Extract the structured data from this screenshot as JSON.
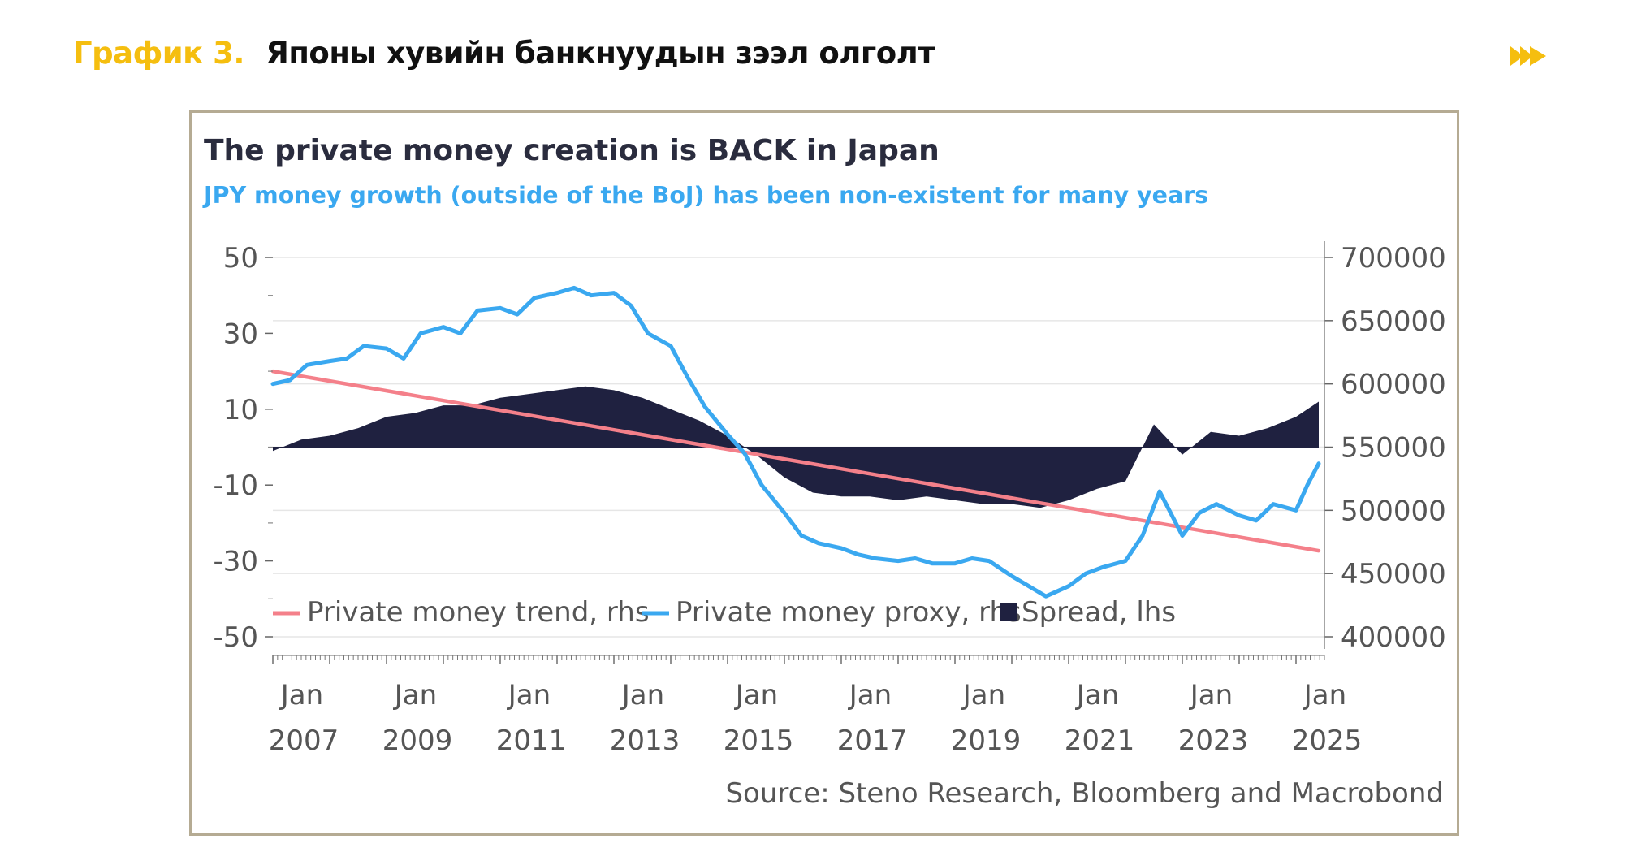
{
  "header": {
    "label": "График 3.",
    "title": "Японы хувийн банкнуудын зээл олголт",
    "arrow_icon": "fast-forward-icon",
    "accent_color": "#F5BE0F"
  },
  "chart_data": {
    "type": "line",
    "title": "The private money creation is BACK in Japan",
    "subtitle": "JPY money growth (outside of the BoJ) has been non-existent for many years",
    "source": "Source: Steno Research, Bloomberg and Macrobond",
    "x_tick_labels": [
      [
        "Jan",
        "2007"
      ],
      [
        "Jan",
        "2009"
      ],
      [
        "Jan",
        "2011"
      ],
      [
        "Jan",
        "2013"
      ],
      [
        "Jan",
        "2015"
      ],
      [
        "Jan",
        "2017"
      ],
      [
        "Jan",
        "2019"
      ],
      [
        "Jan",
        "2021"
      ],
      [
        "Jan",
        "2023"
      ],
      [
        "Jan",
        "2025"
      ]
    ],
    "x_range": [
      2007.0,
      2025.5
    ],
    "y_left": {
      "ticks": [
        "50",
        "30",
        "10",
        "-10",
        "-30",
        "-50"
      ],
      "range": [
        -50,
        50
      ]
    },
    "y_right": {
      "ticks": [
        "700000",
        "650000",
        "600000",
        "550000",
        "500000",
        "450000",
        "400000"
      ],
      "range": [
        400000,
        700000
      ]
    },
    "grid": true,
    "legend_position": "bottom-left",
    "legend": [
      {
        "name": "Private money trend, rhs",
        "kind": "line"
      },
      {
        "name": "Private money proxy, rhs",
        "kind": "line"
      },
      {
        "name": "Spread, lhs",
        "kind": "area"
      }
    ],
    "series": [
      {
        "name": "Private money trend, rhs",
        "axis": "right",
        "color": "#F4808A",
        "x": [
          2007.0,
          2025.4
        ],
        "y": [
          610000,
          468000
        ]
      },
      {
        "name": "Private money proxy, rhs",
        "axis": "right",
        "color": "#3AA8F0",
        "x": [
          2007.0,
          2007.3,
          2007.6,
          2008.0,
          2008.3,
          2008.6,
          2009.0,
          2009.3,
          2009.6,
          2010.0,
          2010.3,
          2010.6,
          2011.0,
          2011.3,
          2011.6,
          2012.0,
          2012.3,
          2012.6,
          2013.0,
          2013.3,
          2013.6,
          2014.0,
          2014.3,
          2014.6,
          2015.0,
          2015.3,
          2015.6,
          2016.0,
          2016.3,
          2016.6,
          2017.0,
          2017.3,
          2017.6,
          2018.0,
          2018.3,
          2018.6,
          2019.0,
          2019.3,
          2019.6,
          2020.0,
          2020.3,
          2020.6,
          2021.0,
          2021.3,
          2021.6,
          2022.0,
          2022.3,
          2022.6,
          2023.0,
          2023.3,
          2023.6,
          2024.0,
          2024.3,
          2024.6,
          2025.0,
          2025.2,
          2025.4
        ],
        "y": [
          600000,
          603000,
          615000,
          618000,
          620000,
          630000,
          628000,
          620000,
          640000,
          645000,
          640000,
          658000,
          660000,
          655000,
          668000,
          672000,
          676000,
          670000,
          672000,
          662000,
          640000,
          630000,
          605000,
          582000,
          560000,
          545000,
          520000,
          498000,
          480000,
          474000,
          470000,
          465000,
          462000,
          460000,
          462000,
          458000,
          458000,
          462000,
          460000,
          448000,
          440000,
          432000,
          440000,
          450000,
          455000,
          460000,
          480000,
          515000,
          480000,
          498000,
          505000,
          496000,
          492000,
          505000,
          500000,
          520000,
          537000
        ]
      },
      {
        "name": "Spread, lhs",
        "axis": "left",
        "color": "#1F2140",
        "x": [
          2007.0,
          2007.5,
          2008.0,
          2008.5,
          2009.0,
          2009.5,
          2010.0,
          2010.5,
          2011.0,
          2011.5,
          2012.0,
          2012.5,
          2013.0,
          2013.5,
          2014.0,
          2014.5,
          2015.0,
          2015.5,
          2016.0,
          2016.5,
          2017.0,
          2017.5,
          2018.0,
          2018.5,
          2019.0,
          2019.5,
          2020.0,
          2020.5,
          2021.0,
          2021.5,
          2022.0,
          2022.5,
          2023.0,
          2023.5,
          2024.0,
          2024.5,
          2025.0,
          2025.4
        ],
        "y": [
          -1,
          2,
          3,
          5,
          8,
          9,
          11,
          11,
          13,
          14,
          15,
          16,
          15,
          13,
          10,
          7,
          3,
          -2,
          -8,
          -12,
          -13,
          -13,
          -14,
          -13,
          -14,
          -15,
          -15,
          -16,
          -14,
          -11,
          -9,
          6,
          -2,
          4,
          3,
          5,
          8,
          12
        ]
      }
    ]
  }
}
